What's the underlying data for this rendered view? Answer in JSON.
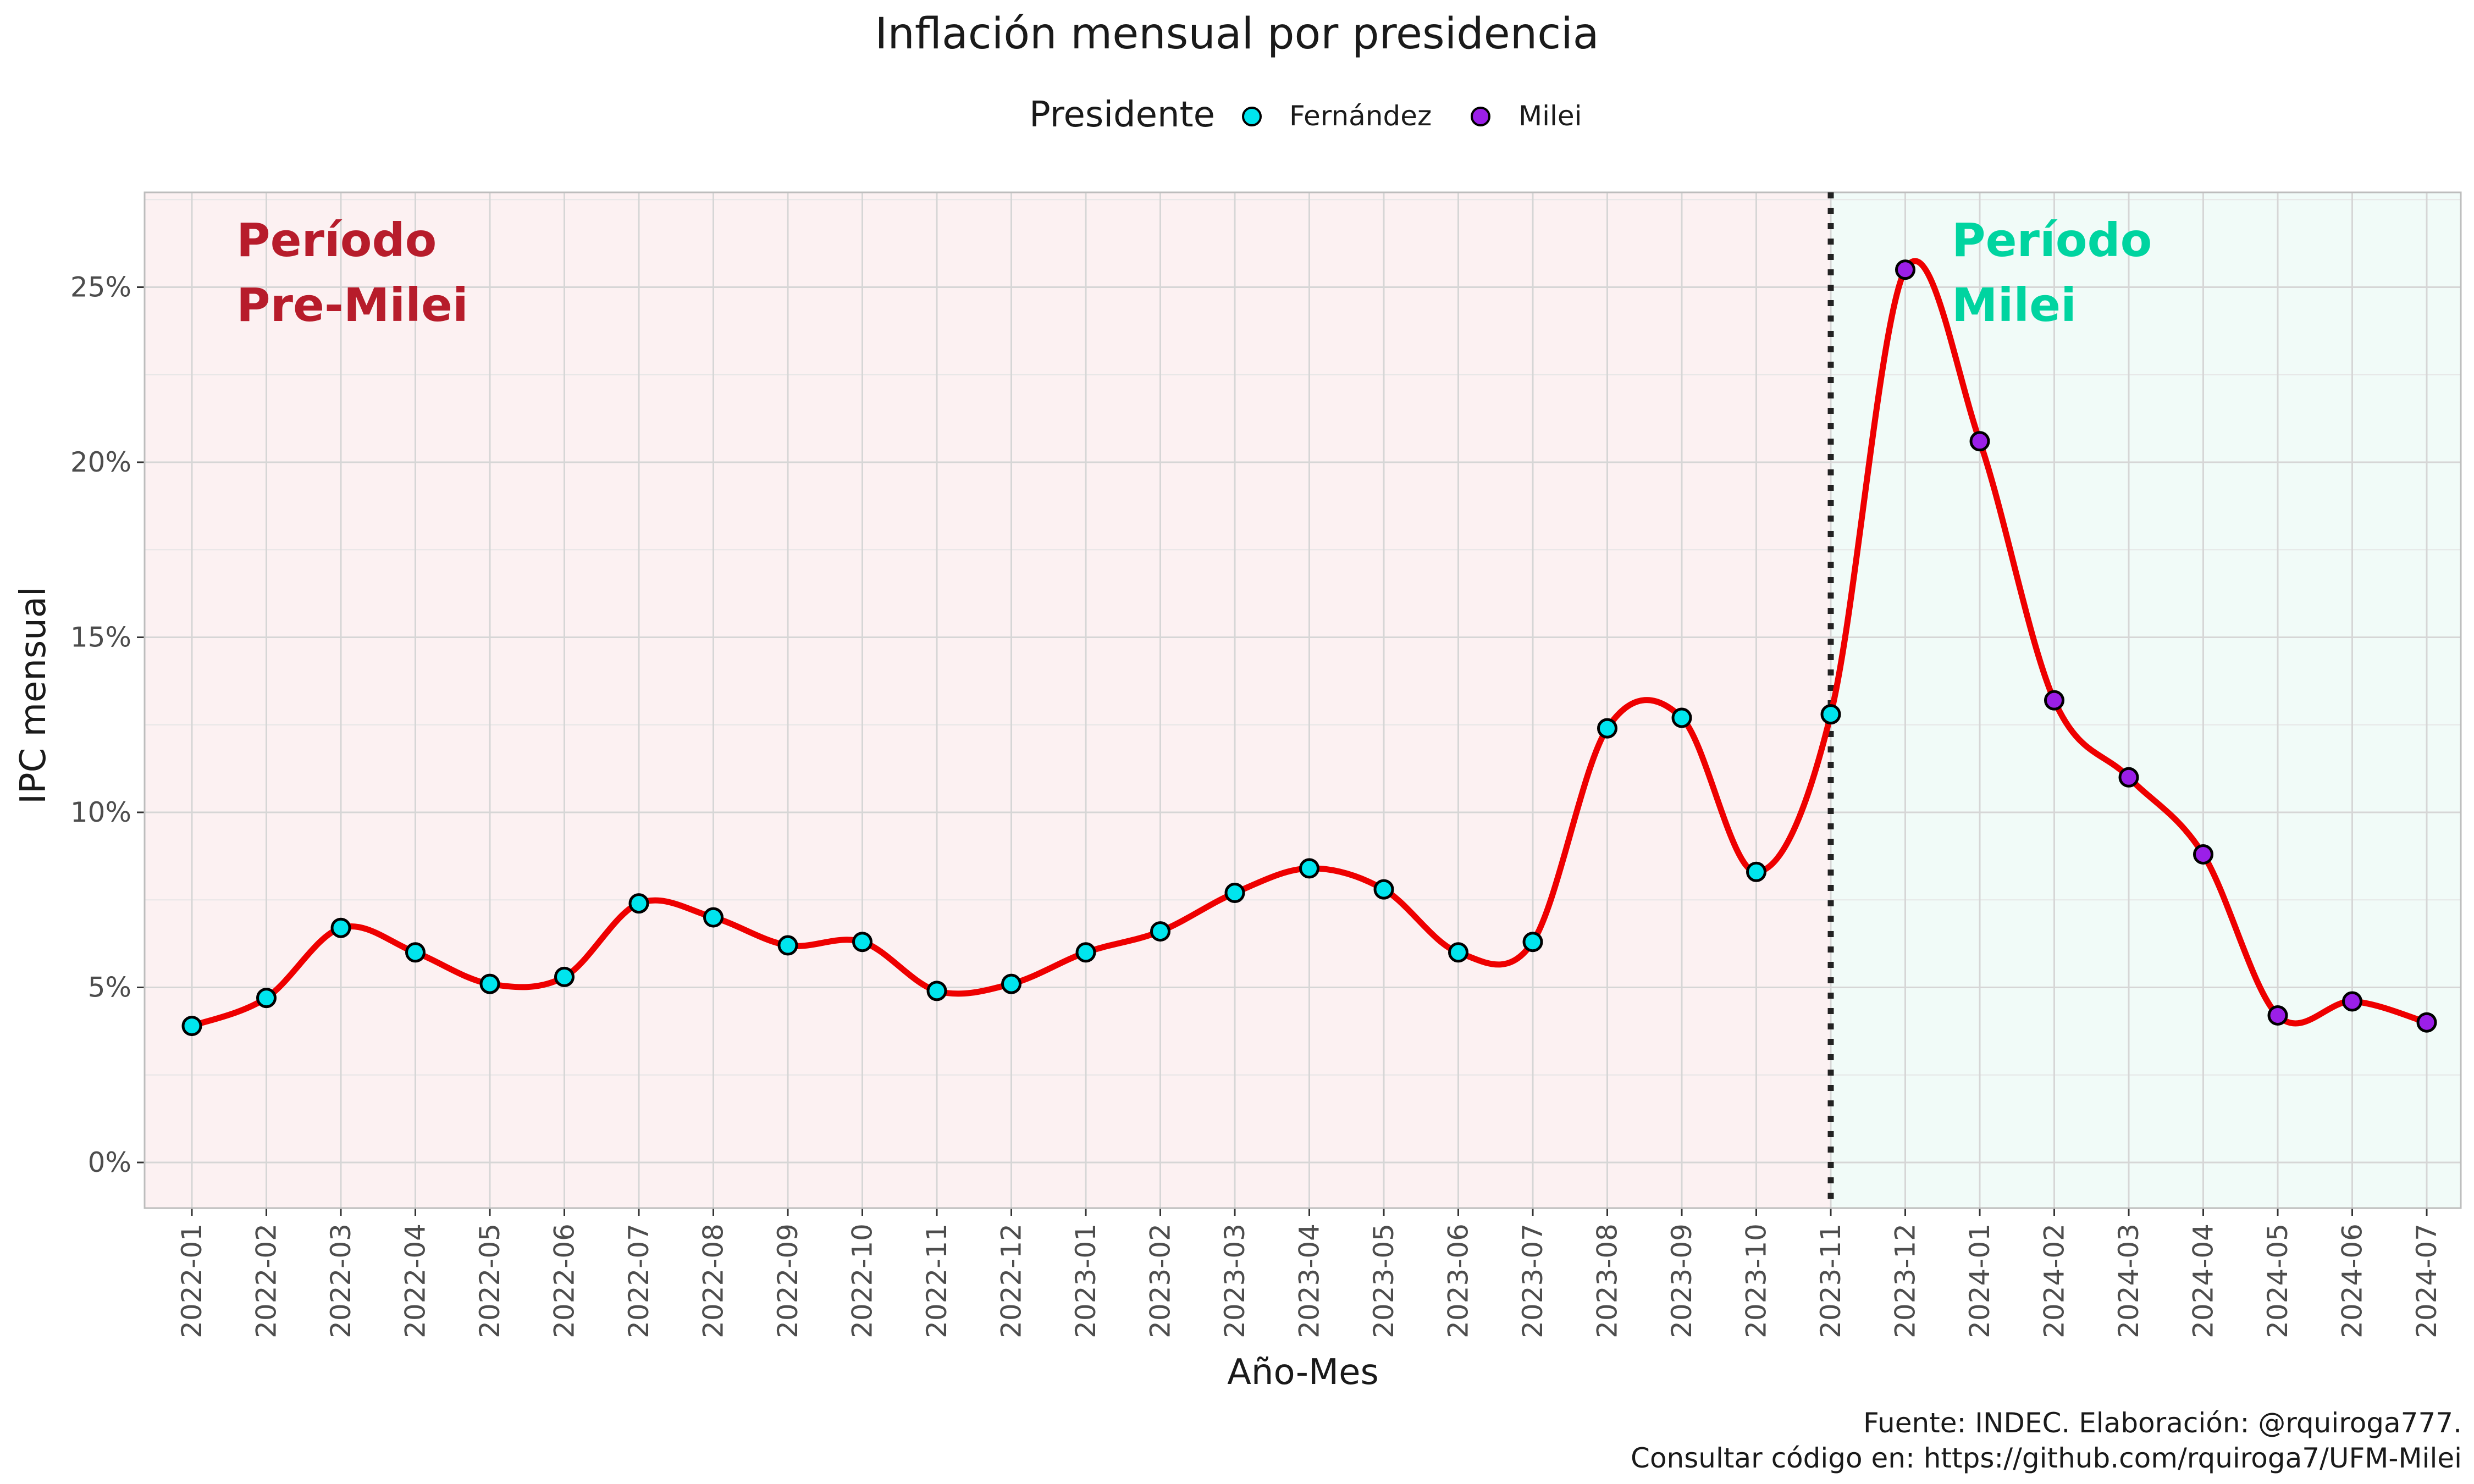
{
  "chart_data": {
    "type": "line",
    "title": "Inflación mensual por presidencia",
    "xlabel": "Año-Mes",
    "ylabel": "IPC mensual",
    "ylim": [
      -1.3,
      27.7
    ],
    "yticks": [
      0,
      5,
      10,
      15,
      20,
      25
    ],
    "ytick_labels": [
      "0%",
      "5%",
      "10%",
      "15%",
      "20%",
      "25%"
    ],
    "grid": true,
    "legend": {
      "title": "Presidente",
      "placement": "top",
      "entries": [
        {
          "name": "Fernández",
          "color": "#00e5ee"
        },
        {
          "name": "Milei",
          "color": "#9b1fe8"
        }
      ]
    },
    "categories": [
      "2022-01",
      "2022-02",
      "2022-03",
      "2022-04",
      "2022-05",
      "2022-06",
      "2022-07",
      "2022-08",
      "2022-09",
      "2022-10",
      "2022-11",
      "2022-12",
      "2023-01",
      "2023-02",
      "2023-03",
      "2023-04",
      "2023-05",
      "2023-06",
      "2023-07",
      "2023-08",
      "2023-09",
      "2023-10",
      "2023-11",
      "2023-12",
      "2024-01",
      "2024-02",
      "2024-03",
      "2024-04",
      "2024-05",
      "2024-06",
      "2024-07"
    ],
    "values": [
      3.9,
      4.7,
      6.7,
      6.0,
      5.1,
      5.3,
      7.4,
      7.0,
      6.2,
      6.3,
      4.9,
      5.1,
      6.0,
      6.6,
      7.7,
      8.4,
      7.8,
      6.0,
      6.3,
      12.4,
      12.7,
      8.3,
      12.8,
      25.5,
      20.6,
      13.2,
      11.0,
      8.8,
      4.2,
      4.6,
      4.0
    ],
    "president": [
      "Fernández",
      "Fernández",
      "Fernández",
      "Fernández",
      "Fernández",
      "Fernández",
      "Fernández",
      "Fernández",
      "Fernández",
      "Fernández",
      "Fernández",
      "Fernández",
      "Fernández",
      "Fernández",
      "Fernández",
      "Fernández",
      "Fernández",
      "Fernández",
      "Fernández",
      "Fernández",
      "Fernández",
      "Fernández",
      "Fernández",
      "Milei",
      "Milei",
      "Milei",
      "Milei",
      "Milei",
      "Milei",
      "Milei",
      "Milei"
    ],
    "line_color": "#ee0000",
    "divider_category": "2023-11",
    "regions": [
      {
        "label": [
          "Período",
          "Pre-Milei"
        ],
        "color": "#b71c2b",
        "fill": "#fcf1f2"
      },
      {
        "label": [
          "Período",
          "Milei"
        ],
        "color": "#00d4a0",
        "fill": "#f1fbf8"
      }
    ],
    "caption": [
      "Fuente: INDEC. Elaboración: @rquiroga777.",
      "Consultar código en: https://github.com/rquiroga7/UFM-Milei"
    ]
  }
}
